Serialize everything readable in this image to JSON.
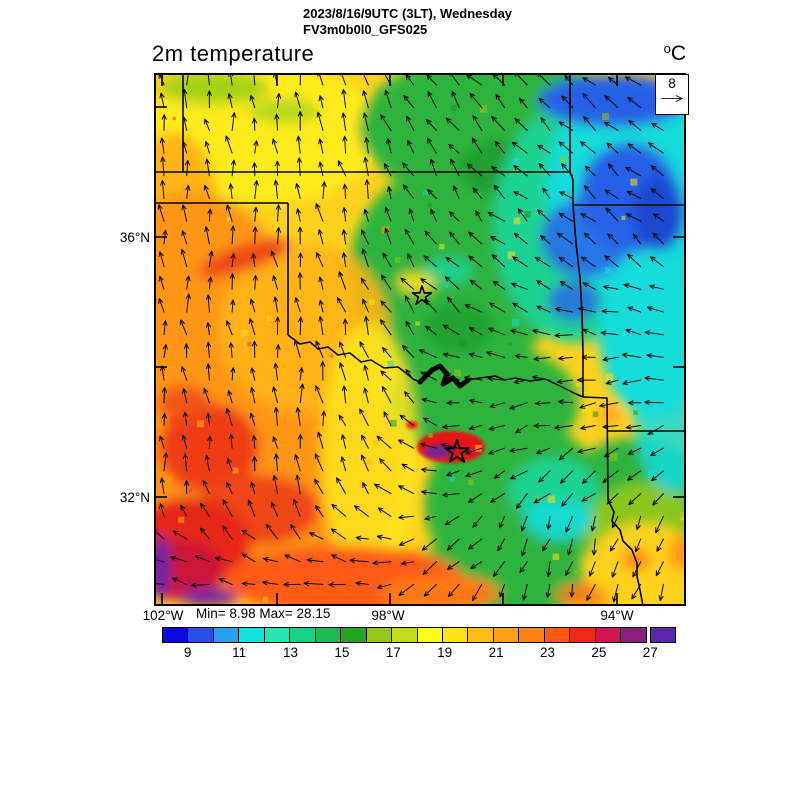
{
  "header": {
    "date_line": "2023/8/16/9UTC (3LT), Wednesday",
    "model_line": "FV3m0b0l0_GFS025"
  },
  "plot": {
    "variable": "2m temperature",
    "units_sup": "o",
    "units_base": "C"
  },
  "wind_reference": {
    "value": "8"
  },
  "axes": {
    "lat_labels": [
      "36°N",
      "32°N"
    ],
    "lon_labels": [
      "102°W",
      "98°W",
      "94°W"
    ]
  },
  "stats": {
    "text": "Min= 8.98 Max= 28.15"
  },
  "chart_data": {
    "type": "heatmap",
    "title": "2m temperature",
    "units": "°C",
    "datetime": "2023/8/16/9UTC (3LT), Wednesday",
    "model": "FV3m0b0l0_GFS025",
    "min": 8.98,
    "max": 28.15,
    "wind_reference_value": 8,
    "x_ticks": [
      "102°W",
      "98°W",
      "94°W"
    ],
    "y_ticks": [
      "36°N",
      "32°N"
    ],
    "region": "Texas-Oklahoma domain with state borders, Red River, two city stars, wind vector grid",
    "colorbar": {
      "tick_values": [
        9,
        11,
        13,
        15,
        17,
        19,
        21,
        23,
        25,
        27
      ],
      "colors": [
        "#0a0ae1",
        "#2850e6",
        "#28a0f0",
        "#14e1e1",
        "#28e6b4",
        "#14d287",
        "#1eb950",
        "#23a523",
        "#96c819",
        "#c3dc19",
        "#ffff14",
        "#ffe114",
        "#ffbe14",
        "#ffa014",
        "#ff8214",
        "#ff5a14",
        "#f02814",
        "#d21450",
        "#8c2080",
        "#5a28aa"
      ]
    }
  }
}
